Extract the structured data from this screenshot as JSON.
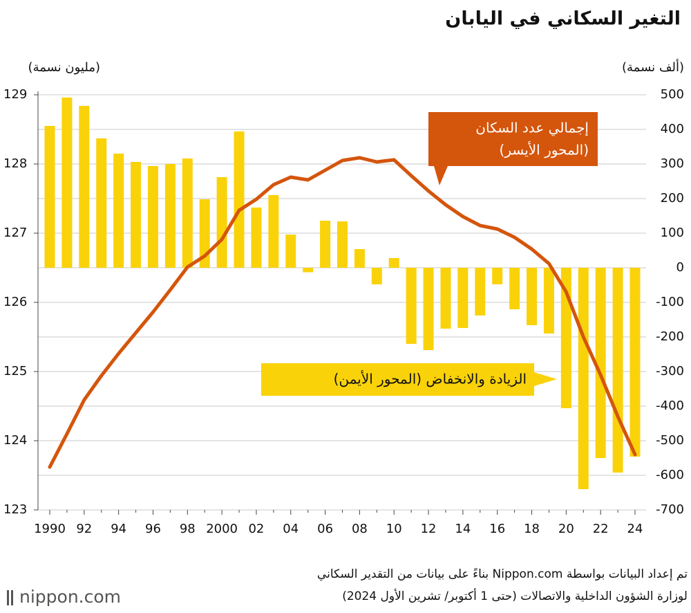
{
  "chart_data": {
    "type": "bar-line",
    "title": "التغير السكاني في اليابان",
    "y_label": "(مليون نسمة)",
    "y2_label": "(ألف نسمة)",
    "categories": [
      "1990",
      null,
      "92",
      null,
      "94",
      null,
      "96",
      null,
      "98",
      null,
      "2000",
      null,
      "02",
      null,
      "04",
      null,
      "06",
      null,
      "08",
      null,
      "10",
      null,
      "12",
      null,
      "14",
      null,
      "16",
      null,
      "18",
      null,
      "20",
      null,
      "22",
      null,
      "24"
    ],
    "ylim": [
      123,
      129
    ],
    "yticks": [
      123,
      124,
      125,
      126,
      127,
      128,
      129
    ],
    "y2lim": [
      -700,
      500
    ],
    "y2ticks": [
      -700,
      -600,
      -500,
      -400,
      -300,
      -200,
      -100,
      0,
      100,
      200,
      300,
      400,
      500
    ],
    "grid": true,
    "series": [
      {
        "name": "الزيادة والانخفاض (المحور الأيمن)",
        "type": "bar",
        "axis": "y2",
        "color": "#fad20a",
        "values": [
          410,
          492,
          468,
          374,
          330,
          306,
          294,
          300,
          316,
          198,
          262,
          394,
          174,
          210,
          96,
          -13,
          136,
          134,
          54,
          -48,
          28,
          -220,
          -238,
          -176,
          -174,
          -138,
          -48,
          -120,
          -166,
          -190,
          -406,
          -640,
          -550,
          -592,
          -546
        ]
      },
      {
        "name": "إجمالي عدد السكان",
        "note": "(المحور الأيسر)",
        "type": "line",
        "axis": "y",
        "color": "#d4550c",
        "values": [
          123.62,
          124.1,
          124.59,
          124.94,
          125.26,
          125.56,
          125.86,
          126.18,
          126.51,
          126.67,
          126.91,
          127.33,
          127.49,
          127.7,
          127.81,
          127.77,
          127.91,
          128.05,
          128.09,
          128.03,
          128.06,
          127.83,
          127.61,
          127.41,
          127.24,
          127.11,
          127.06,
          126.94,
          126.77,
          126.56,
          126.15,
          125.5,
          124.95,
          124.35,
          123.8
        ]
      }
    ],
    "source": [
      "تم إعداد البيانات بواسطة Nippon.com بناءً على بيانات من التقدير السكاني",
      "لوزارة الشؤون الداخلية والاتصالات (حتى 1 أكتوبر/ تشرين الأول 2024)"
    ],
    "logo": "nippon.com"
  }
}
